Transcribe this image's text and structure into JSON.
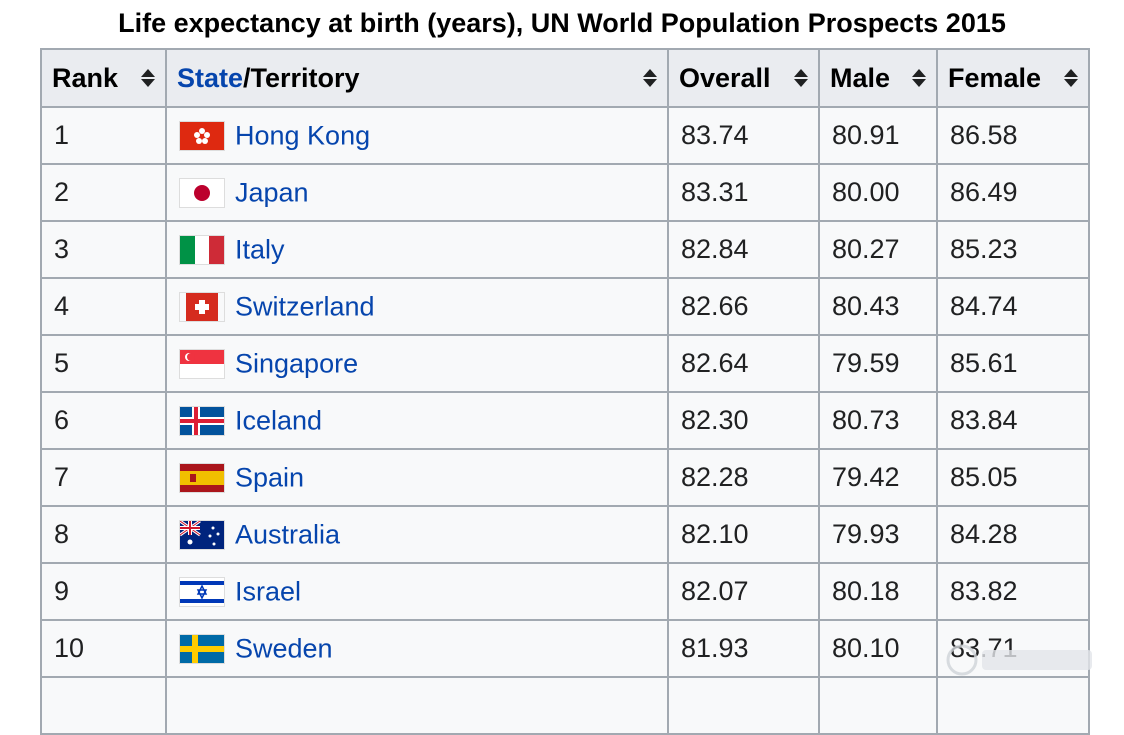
{
  "caption": "Life expectancy at birth (years), UN World Population Prospects 2015",
  "headers": {
    "rank": "Rank",
    "state_link": "State",
    "state_rest": "/Territory",
    "overall": "Overall",
    "male": "Male",
    "female": "Female"
  },
  "rows": [
    {
      "rank": "1",
      "country": "Hong Kong",
      "overall": "83.74",
      "male": "80.91",
      "female": "86.58",
      "flag": "hong-kong-flag-icon"
    },
    {
      "rank": "2",
      "country": "Japan",
      "overall": "83.31",
      "male": "80.00",
      "female": "86.49",
      "flag": "japan-flag-icon"
    },
    {
      "rank": "3",
      "country": "Italy",
      "overall": "82.84",
      "male": "80.27",
      "female": "85.23",
      "flag": "italy-flag-icon"
    },
    {
      "rank": "4",
      "country": "Switzerland",
      "overall": "82.66",
      "male": "80.43",
      "female": "84.74",
      "flag": "switzerland-flag-icon"
    },
    {
      "rank": "5",
      "country": "Singapore",
      "overall": "82.64",
      "male": "79.59",
      "female": "85.61",
      "flag": "singapore-flag-icon"
    },
    {
      "rank": "6",
      "country": "Iceland",
      "overall": "82.30",
      "male": "80.73",
      "female": "83.84",
      "flag": "iceland-flag-icon"
    },
    {
      "rank": "7",
      "country": "Spain",
      "overall": "82.28",
      "male": "79.42",
      "female": "85.05",
      "flag": "spain-flag-icon"
    },
    {
      "rank": "8",
      "country": "Australia",
      "overall": "82.10",
      "male": "79.93",
      "female": "84.28",
      "flag": "australia-flag-icon"
    },
    {
      "rank": "9",
      "country": "Israel",
      "overall": "82.07",
      "male": "80.18",
      "female": "83.82",
      "flag": "israel-flag-icon"
    },
    {
      "rank": "10",
      "country": "Sweden",
      "overall": "81.93",
      "male": "80.10",
      "female": "83.71",
      "flag": "sweden-flag-icon"
    }
  ],
  "colors": {
    "link": "#0645ad",
    "header_bg": "#eaecf0",
    "cell_bg": "#f8f9fa",
    "border": "#a2a9b1"
  }
}
